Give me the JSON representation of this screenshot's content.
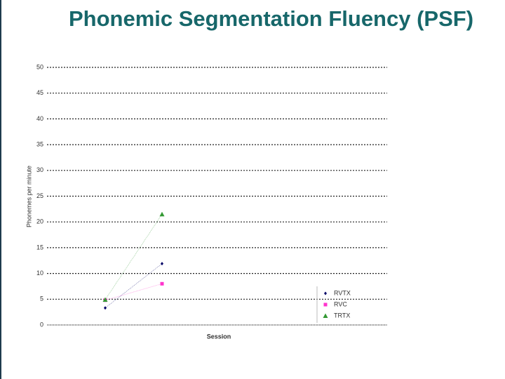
{
  "chart_data": {
    "type": "line",
    "title": "Phonemic Segmentation Fluency (PSF)",
    "x_label": "Session",
    "y_label": "Phonemes per minute",
    "categories": [
      null,
      null
    ],
    "series": [
      {
        "name": "RVTX",
        "color": "#000066",
        "marker": "diamond",
        "values": [
          3.3,
          11.9
        ]
      },
      {
        "name": "RVC",
        "color": "#ff33cc",
        "marker": "square",
        "values": [
          4.8,
          8.0
        ]
      },
      {
        "name": "TRTX",
        "color": "#339933",
        "marker": "triangle",
        "values": [
          4.9,
          21.5
        ]
      }
    ],
    "ylim": [
      0,
      50
    ],
    "yticks": [
      0,
      5,
      10,
      15,
      20,
      25,
      30,
      35,
      40,
      45,
      50
    ],
    "grid": true,
    "legend": "lower right"
  }
}
